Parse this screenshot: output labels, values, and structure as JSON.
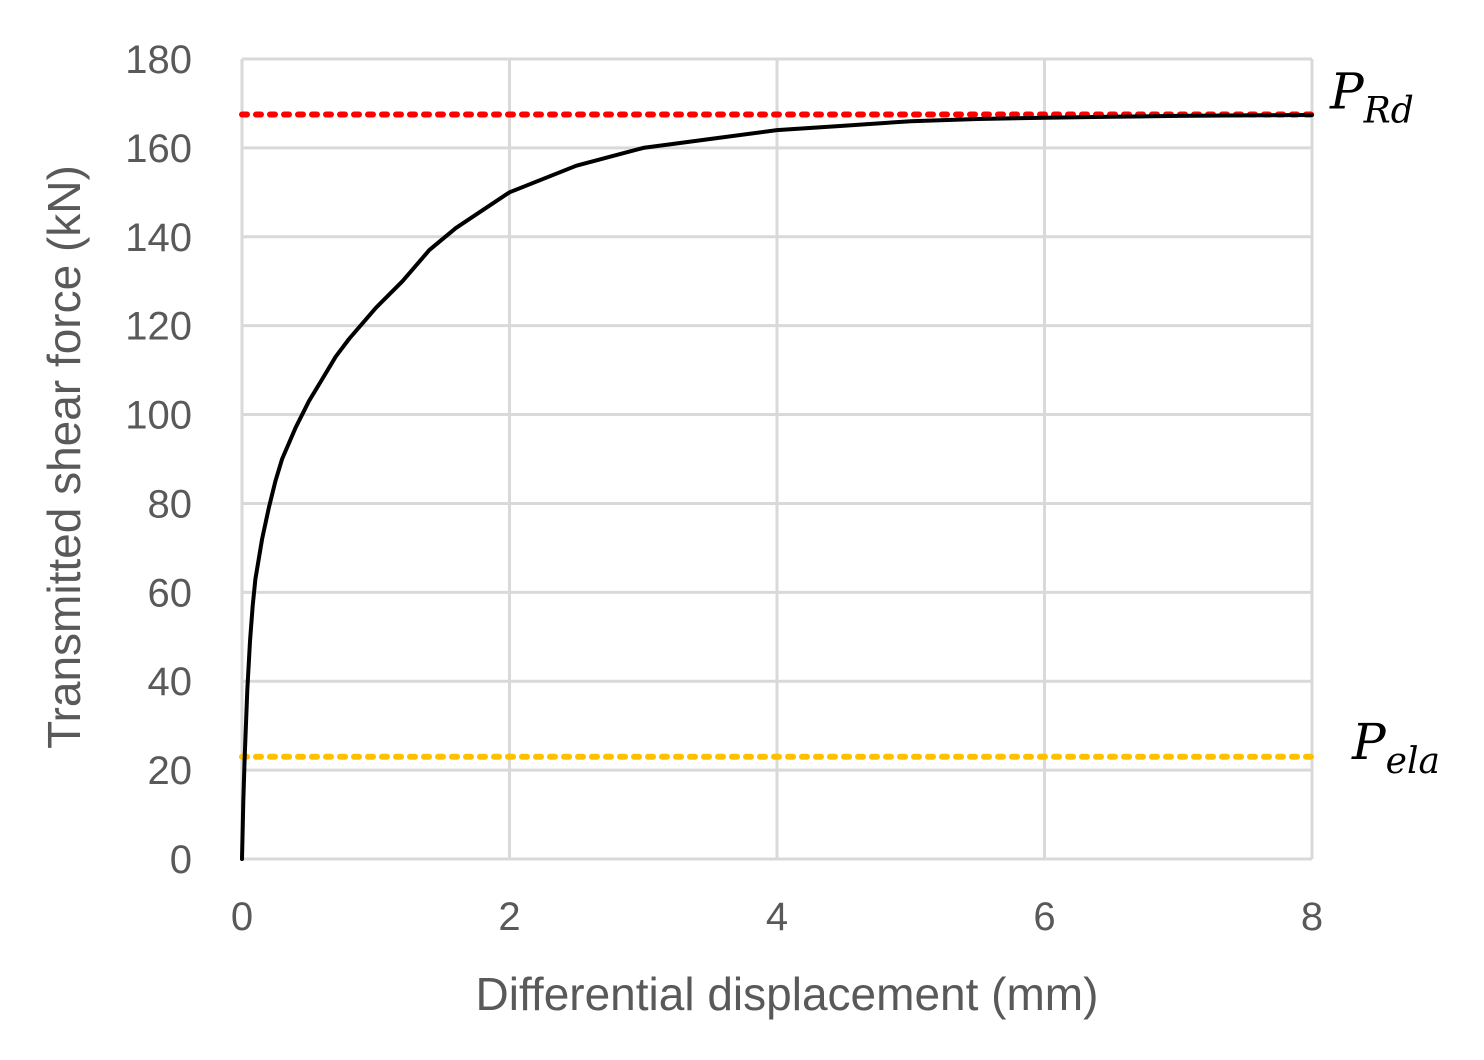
{
  "chart_data": {
    "type": "line",
    "title": "",
    "xlabel": "Differential displacement (mm)",
    "ylabel": "Transmitted shear force (kN)",
    "xlim": [
      0,
      8
    ],
    "ylim": [
      0,
      180
    ],
    "xticks": [
      0,
      2,
      4,
      6,
      8
    ],
    "yticks": [
      0,
      20,
      40,
      60,
      80,
      100,
      120,
      140,
      160,
      180
    ],
    "grid": true,
    "legend": "none",
    "series": [
      {
        "color": "#000000",
        "x": [
          0,
          0.01,
          0.02,
          0.04,
          0.06,
          0.08,
          0.1,
          0.15,
          0.2,
          0.25,
          0.3,
          0.4,
          0.5,
          0.6,
          0.7,
          0.8,
          1.0,
          1.2,
          1.4,
          1.6,
          1.8,
          2.0,
          2.5,
          3.0,
          3.5,
          4.0,
          4.5,
          5.0,
          5.5,
          6.0,
          6.5,
          7.0,
          7.5,
          8.0
        ],
        "y": [
          0,
          13,
          23,
          38,
          49,
          57,
          63,
          72,
          79,
          85,
          90,
          97,
          103,
          108,
          113,
          117,
          124,
          130,
          137,
          142,
          146,
          150,
          156,
          160,
          162,
          164,
          165,
          166,
          166.5,
          166.8,
          167,
          167.2,
          167.3,
          167.4
        ]
      }
    ],
    "reference_lines": [
      {
        "name": "P",
        "subscript": "Rd",
        "y": 167.5,
        "color": "#ff0000"
      },
      {
        "name": "P",
        "subscript": "ela",
        "y": 23,
        "color": "#ffc000"
      }
    ]
  }
}
